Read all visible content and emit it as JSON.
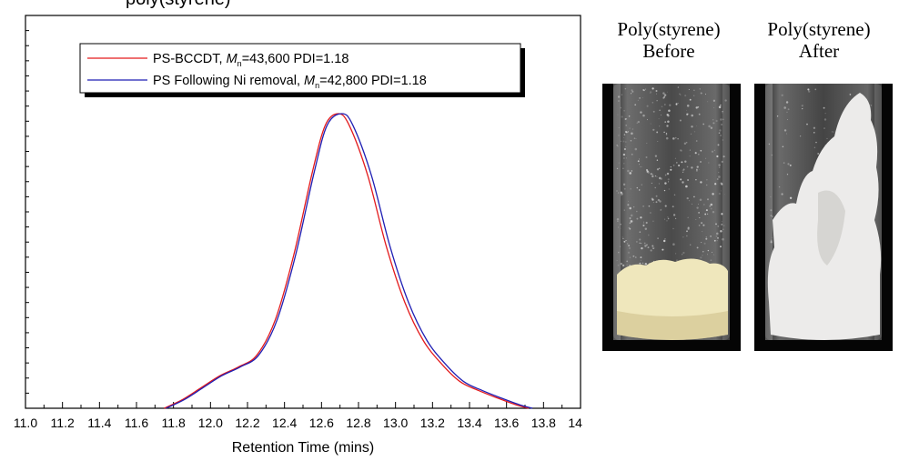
{
  "chart_data": {
    "type": "line",
    "title_fragment": "poly(styrene)",
    "xlabel": "Retention Time (mins)",
    "ylabel": "",
    "xlim": [
      11.0,
      14.0
    ],
    "ylim": [
      0,
      1.0
    ],
    "x_ticks": [
      "11.0",
      "11.2",
      "11.4",
      "11.6",
      "11.8",
      "12.0",
      "12.2",
      "12.4",
      "12.6",
      "12.8",
      "13.0",
      "13.2",
      "13.4",
      "13.6",
      "13.8",
      "14.0"
    ],
    "legend": {
      "placement": "top-center",
      "entries": [
        {
          "prefix": "PS-BCCDT, ",
          "mn": "M",
          "sub": "n",
          "suffix": "=43,600 PDI=1.18",
          "color": "#e31a1c"
        },
        {
          "prefix": "PS Following Ni removal, ",
          "mn": "M",
          "sub": "n",
          "suffix": "=42,800 PDI=1.18",
          "color": "#1f1fb4"
        }
      ]
    },
    "series": [
      {
        "name": "PS-BCCDT, Mn=43,600 PDI=1.18",
        "color": "#e31a1c",
        "x": [
          11.75,
          11.85,
          11.95,
          12.05,
          12.15,
          12.25,
          12.35,
          12.45,
          12.55,
          12.62,
          12.69,
          12.75,
          12.85,
          12.95,
          13.05,
          13.15,
          13.25,
          13.35,
          13.45,
          13.55,
          13.65,
          13.72
        ],
        "y": [
          0.0,
          0.03,
          0.07,
          0.11,
          0.14,
          0.18,
          0.3,
          0.52,
          0.8,
          0.96,
          1.0,
          0.96,
          0.79,
          0.55,
          0.36,
          0.23,
          0.15,
          0.09,
          0.06,
          0.035,
          0.012,
          0.0
        ]
      },
      {
        "name": "PS Following Ni removal, Mn=42,800 PDI=1.18",
        "color": "#1f1fb4",
        "x": [
          11.76,
          11.86,
          11.96,
          12.06,
          12.16,
          12.26,
          12.36,
          12.46,
          12.56,
          12.63,
          12.71,
          12.77,
          12.87,
          12.97,
          13.07,
          13.17,
          13.27,
          13.37,
          13.47,
          13.57,
          13.67,
          13.74
        ],
        "y": [
          0.0,
          0.03,
          0.07,
          0.11,
          0.14,
          0.18,
          0.3,
          0.52,
          0.8,
          0.96,
          1.0,
          0.96,
          0.79,
          0.55,
          0.36,
          0.23,
          0.15,
          0.09,
          0.06,
          0.035,
          0.012,
          0.0
        ]
      }
    ]
  },
  "photos": {
    "before": {
      "line1": "Poly(styrene)",
      "line2": "Before",
      "powder_color": "#efe7bc"
    },
    "after": {
      "line1": "Poly(styrene)",
      "line2": "After",
      "powder_color": "#ecebea"
    }
  }
}
